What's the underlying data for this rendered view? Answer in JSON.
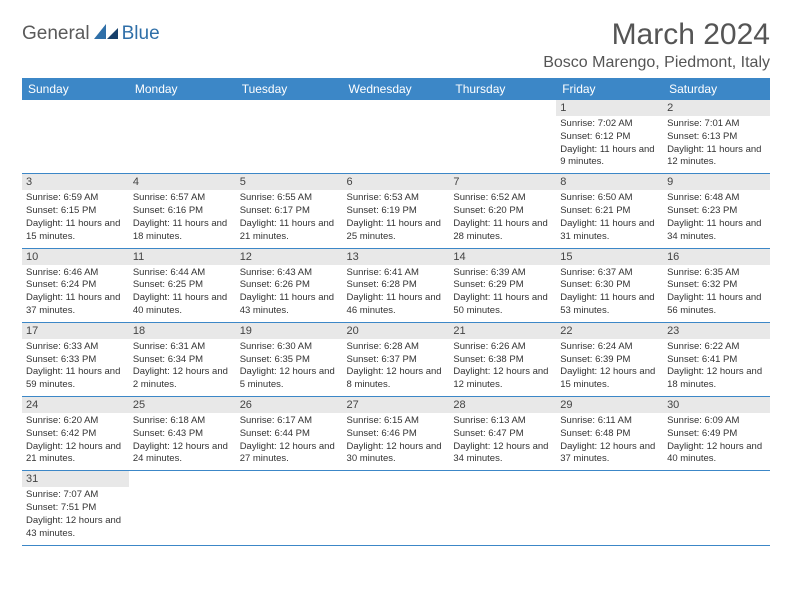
{
  "logo": {
    "text1": "General",
    "text2": "Blue"
  },
  "title": "March 2024",
  "location": "Bosco Marengo, Piedmont, Italy",
  "colors": {
    "header_bg": "#3c87c7",
    "header_text": "#ffffff",
    "daynum_bg": "#e8e8e8",
    "row_border": "#3c87c7",
    "body_text": "#333333",
    "title_text": "#555555",
    "logo_gray": "#5a5a5a",
    "logo_blue": "#2f6fa8"
  },
  "weekdays": [
    "Sunday",
    "Monday",
    "Tuesday",
    "Wednesday",
    "Thursday",
    "Friday",
    "Saturday"
  ],
  "weeks": [
    [
      null,
      null,
      null,
      null,
      null,
      {
        "n": "1",
        "sunrise": "7:02 AM",
        "sunset": "6:12 PM",
        "daylight": "11 hours and 9 minutes."
      },
      {
        "n": "2",
        "sunrise": "7:01 AM",
        "sunset": "6:13 PM",
        "daylight": "11 hours and 12 minutes."
      }
    ],
    [
      {
        "n": "3",
        "sunrise": "6:59 AM",
        "sunset": "6:15 PM",
        "daylight": "11 hours and 15 minutes."
      },
      {
        "n": "4",
        "sunrise": "6:57 AM",
        "sunset": "6:16 PM",
        "daylight": "11 hours and 18 minutes."
      },
      {
        "n": "5",
        "sunrise": "6:55 AM",
        "sunset": "6:17 PM",
        "daylight": "11 hours and 21 minutes."
      },
      {
        "n": "6",
        "sunrise": "6:53 AM",
        "sunset": "6:19 PM",
        "daylight": "11 hours and 25 minutes."
      },
      {
        "n": "7",
        "sunrise": "6:52 AM",
        "sunset": "6:20 PM",
        "daylight": "11 hours and 28 minutes."
      },
      {
        "n": "8",
        "sunrise": "6:50 AM",
        "sunset": "6:21 PM",
        "daylight": "11 hours and 31 minutes."
      },
      {
        "n": "9",
        "sunrise": "6:48 AM",
        "sunset": "6:23 PM",
        "daylight": "11 hours and 34 minutes."
      }
    ],
    [
      {
        "n": "10",
        "sunrise": "6:46 AM",
        "sunset": "6:24 PM",
        "daylight": "11 hours and 37 minutes."
      },
      {
        "n": "11",
        "sunrise": "6:44 AM",
        "sunset": "6:25 PM",
        "daylight": "11 hours and 40 minutes."
      },
      {
        "n": "12",
        "sunrise": "6:43 AM",
        "sunset": "6:26 PM",
        "daylight": "11 hours and 43 minutes."
      },
      {
        "n": "13",
        "sunrise": "6:41 AM",
        "sunset": "6:28 PM",
        "daylight": "11 hours and 46 minutes."
      },
      {
        "n": "14",
        "sunrise": "6:39 AM",
        "sunset": "6:29 PM",
        "daylight": "11 hours and 50 minutes."
      },
      {
        "n": "15",
        "sunrise": "6:37 AM",
        "sunset": "6:30 PM",
        "daylight": "11 hours and 53 minutes."
      },
      {
        "n": "16",
        "sunrise": "6:35 AM",
        "sunset": "6:32 PM",
        "daylight": "11 hours and 56 minutes."
      }
    ],
    [
      {
        "n": "17",
        "sunrise": "6:33 AM",
        "sunset": "6:33 PM",
        "daylight": "11 hours and 59 minutes."
      },
      {
        "n": "18",
        "sunrise": "6:31 AM",
        "sunset": "6:34 PM",
        "daylight": "12 hours and 2 minutes."
      },
      {
        "n": "19",
        "sunrise": "6:30 AM",
        "sunset": "6:35 PM",
        "daylight": "12 hours and 5 minutes."
      },
      {
        "n": "20",
        "sunrise": "6:28 AM",
        "sunset": "6:37 PM",
        "daylight": "12 hours and 8 minutes."
      },
      {
        "n": "21",
        "sunrise": "6:26 AM",
        "sunset": "6:38 PM",
        "daylight": "12 hours and 12 minutes."
      },
      {
        "n": "22",
        "sunrise": "6:24 AM",
        "sunset": "6:39 PM",
        "daylight": "12 hours and 15 minutes."
      },
      {
        "n": "23",
        "sunrise": "6:22 AM",
        "sunset": "6:41 PM",
        "daylight": "12 hours and 18 minutes."
      }
    ],
    [
      {
        "n": "24",
        "sunrise": "6:20 AM",
        "sunset": "6:42 PM",
        "daylight": "12 hours and 21 minutes."
      },
      {
        "n": "25",
        "sunrise": "6:18 AM",
        "sunset": "6:43 PM",
        "daylight": "12 hours and 24 minutes."
      },
      {
        "n": "26",
        "sunrise": "6:17 AM",
        "sunset": "6:44 PM",
        "daylight": "12 hours and 27 minutes."
      },
      {
        "n": "27",
        "sunrise": "6:15 AM",
        "sunset": "6:46 PM",
        "daylight": "12 hours and 30 minutes."
      },
      {
        "n": "28",
        "sunrise": "6:13 AM",
        "sunset": "6:47 PM",
        "daylight": "12 hours and 34 minutes."
      },
      {
        "n": "29",
        "sunrise": "6:11 AM",
        "sunset": "6:48 PM",
        "daylight": "12 hours and 37 minutes."
      },
      {
        "n": "30",
        "sunrise": "6:09 AM",
        "sunset": "6:49 PM",
        "daylight": "12 hours and 40 minutes."
      }
    ],
    [
      {
        "n": "31",
        "sunrise": "7:07 AM",
        "sunset": "7:51 PM",
        "daylight": "12 hours and 43 minutes."
      },
      null,
      null,
      null,
      null,
      null,
      null
    ]
  ],
  "labels": {
    "sunrise": "Sunrise:",
    "sunset": "Sunset:",
    "daylight": "Daylight:"
  }
}
